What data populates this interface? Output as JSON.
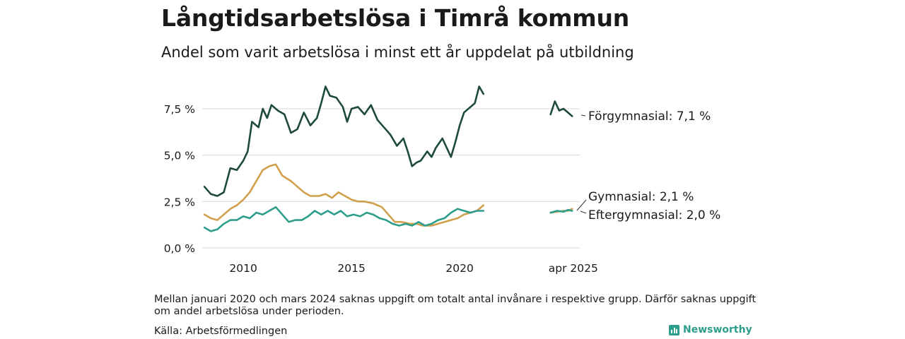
{
  "title": "Långtidsarbetslösa i Timrå kommun",
  "subtitle": "Andel som varit arbetslösa i minst ett år uppdelat på utbildning",
  "note": "Mellan januari 2020 och mars 2024 saknas uppgift om totalt antal invånare i respektive grupp. Därför saknas uppgift om andel arbetslösa under perioden.",
  "source": "Källa: Arbetsförmedlingen",
  "brand": "Newsworthy",
  "chart_data": {
    "type": "line",
    "title": "Långtidsarbetslösa i Timrå kommun",
    "subtitle": "Andel som varit arbetslösa i minst ett år uppdelat på utbildning",
    "xlabel": "",
    "ylabel": "",
    "ylim": [
      0,
      9.5
    ],
    "yticks": [
      0,
      2.5,
      5.0,
      7.5
    ],
    "ytick_labels": [
      "0,0 %",
      "2,5 %",
      "5,0 %",
      "7,5 %"
    ],
    "xtick_labels": [
      "2010",
      "2015",
      "2020",
      "apr 2025"
    ],
    "xticks": [
      2010.0,
      2015.0,
      2020.0,
      2025.25
    ],
    "grid": true,
    "legend": "direct labels at line ends (right)",
    "series": [
      {
        "name": "Förgymnasial",
        "end_label": "Förgymnasial: 7,1 %",
        "color": "#1e4a3e",
        "segments": [
          [
            [
              2008.2,
              3.3
            ],
            [
              2008.5,
              2.9
            ],
            [
              2008.8,
              2.8
            ],
            [
              2009.1,
              3.0
            ],
            [
              2009.4,
              4.3
            ],
            [
              2009.7,
              4.2
            ],
            [
              2010.0,
              4.7
            ],
            [
              2010.2,
              5.2
            ],
            [
              2010.4,
              6.8
            ],
            [
              2010.7,
              6.5
            ],
            [
              2010.9,
              7.5
            ],
            [
              2011.1,
              7.0
            ],
            [
              2011.3,
              7.7
            ],
            [
              2011.6,
              7.4
            ],
            [
              2011.9,
              7.2
            ],
            [
              2012.2,
              6.2
            ],
            [
              2012.5,
              6.4
            ],
            [
              2012.8,
              7.3
            ],
            [
              2013.1,
              6.6
            ],
            [
              2013.4,
              7.0
            ],
            [
              2013.6,
              7.8
            ],
            [
              2013.8,
              8.7
            ],
            [
              2014.0,
              8.2
            ],
            [
              2014.3,
              8.1
            ],
            [
              2014.6,
              7.6
            ],
            [
              2014.8,
              6.8
            ],
            [
              2015.0,
              7.5
            ],
            [
              2015.3,
              7.6
            ],
            [
              2015.6,
              7.2
            ],
            [
              2015.9,
              7.7
            ],
            [
              2016.2,
              6.9
            ],
            [
              2016.5,
              6.5
            ],
            [
              2016.8,
              6.1
            ],
            [
              2017.1,
              5.5
            ],
            [
              2017.4,
              5.9
            ],
            [
              2017.6,
              5.2
            ],
            [
              2017.8,
              4.4
            ],
            [
              2018.0,
              4.6
            ],
            [
              2018.2,
              4.7
            ],
            [
              2018.5,
              5.2
            ],
            [
              2018.7,
              4.9
            ],
            [
              2018.9,
              5.4
            ],
            [
              2019.2,
              5.9
            ],
            [
              2019.4,
              5.4
            ],
            [
              2019.6,
              4.9
            ],
            [
              2019.8,
              5.7
            ],
            [
              2020.0,
              6.6
            ],
            [
              2020.2,
              7.3
            ],
            [
              2020.5,
              7.6
            ],
            [
              2020.7,
              7.8
            ],
            [
              2020.9,
              8.7
            ],
            [
              2021.1,
              8.3
            ]
          ],
          [
            [
              2024.2,
              7.2
            ],
            [
              2024.4,
              7.9
            ],
            [
              2024.6,
              7.4
            ],
            [
              2024.8,
              7.5
            ],
            [
              2025.0,
              7.3
            ],
            [
              2025.2,
              7.1
            ]
          ]
        ]
      },
      {
        "name": "Gymnasial",
        "end_label": "Gymnasial: 2,1 %",
        "color": "#d1a04c",
        "segments": [
          [
            [
              2008.2,
              1.8
            ],
            [
              2008.5,
              1.6
            ],
            [
              2008.8,
              1.5
            ],
            [
              2009.1,
              1.8
            ],
            [
              2009.4,
              2.1
            ],
            [
              2009.7,
              2.3
            ],
            [
              2010.0,
              2.6
            ],
            [
              2010.3,
              3.0
            ],
            [
              2010.6,
              3.6
            ],
            [
              2010.9,
              4.2
            ],
            [
              2011.2,
              4.4
            ],
            [
              2011.5,
              4.5
            ],
            [
              2011.8,
              3.9
            ],
            [
              2012.2,
              3.6
            ],
            [
              2012.5,
              3.3
            ],
            [
              2012.8,
              3.0
            ],
            [
              2013.1,
              2.8
            ],
            [
              2013.5,
              2.8
            ],
            [
              2013.8,
              2.9
            ],
            [
              2014.1,
              2.7
            ],
            [
              2014.4,
              3.0
            ],
            [
              2014.7,
              2.8
            ],
            [
              2015.0,
              2.6
            ],
            [
              2015.3,
              2.5
            ],
            [
              2015.6,
              2.5
            ],
            [
              2016.0,
              2.4
            ],
            [
              2016.4,
              2.2
            ],
            [
              2016.7,
              1.8
            ],
            [
              2017.0,
              1.4
            ],
            [
              2017.3,
              1.4
            ],
            [
              2017.7,
              1.3
            ],
            [
              2018.0,
              1.3
            ],
            [
              2018.3,
              1.2
            ],
            [
              2018.7,
              1.2
            ],
            [
              2019.0,
              1.3
            ],
            [
              2019.3,
              1.4
            ],
            [
              2019.6,
              1.5
            ],
            [
              2019.9,
              1.6
            ],
            [
              2020.2,
              1.8
            ],
            [
              2020.5,
              1.9
            ],
            [
              2020.8,
              2.0
            ],
            [
              2021.1,
              2.3
            ]
          ],
          [
            [
              2024.2,
              1.9
            ],
            [
              2024.5,
              1.95
            ],
            [
              2024.8,
              2.0
            ],
            [
              2025.0,
              2.0
            ],
            [
              2025.2,
              2.1
            ]
          ]
        ]
      },
      {
        "name": "Eftergymnasial",
        "end_label": "Eftergymnasial: 2,0 %",
        "color": "#2e9e8c",
        "segments": [
          [
            [
              2008.2,
              1.1
            ],
            [
              2008.5,
              0.9
            ],
            [
              2008.8,
              1.0
            ],
            [
              2009.1,
              1.3
            ],
            [
              2009.4,
              1.5
            ],
            [
              2009.7,
              1.5
            ],
            [
              2010.0,
              1.7
            ],
            [
              2010.3,
              1.6
            ],
            [
              2010.6,
              1.9
            ],
            [
              2010.9,
              1.8
            ],
            [
              2011.2,
              2.0
            ],
            [
              2011.5,
              2.2
            ],
            [
              2011.8,
              1.8
            ],
            [
              2012.1,
              1.4
            ],
            [
              2012.4,
              1.5
            ],
            [
              2012.7,
              1.5
            ],
            [
              2013.0,
              1.7
            ],
            [
              2013.3,
              2.0
            ],
            [
              2013.6,
              1.8
            ],
            [
              2013.9,
              2.0
            ],
            [
              2014.2,
              1.8
            ],
            [
              2014.5,
              2.0
            ],
            [
              2014.8,
              1.7
            ],
            [
              2015.1,
              1.8
            ],
            [
              2015.4,
              1.7
            ],
            [
              2015.7,
              1.9
            ],
            [
              2016.0,
              1.8
            ],
            [
              2016.3,
              1.6
            ],
            [
              2016.6,
              1.5
            ],
            [
              2016.9,
              1.3
            ],
            [
              2017.2,
              1.2
            ],
            [
              2017.5,
              1.3
            ],
            [
              2017.8,
              1.2
            ],
            [
              2018.1,
              1.4
            ],
            [
              2018.4,
              1.2
            ],
            [
              2018.7,
              1.3
            ],
            [
              2019.0,
              1.5
            ],
            [
              2019.3,
              1.6
            ],
            [
              2019.6,
              1.9
            ],
            [
              2019.9,
              2.1
            ],
            [
              2020.2,
              2.0
            ],
            [
              2020.5,
              1.9
            ],
            [
              2020.8,
              2.0
            ],
            [
              2021.1,
              2.0
            ]
          ],
          [
            [
              2024.2,
              1.9
            ],
            [
              2024.5,
              2.0
            ],
            [
              2024.8,
              1.95
            ],
            [
              2025.0,
              2.05
            ],
            [
              2025.2,
              2.0
            ]
          ]
        ]
      }
    ]
  }
}
